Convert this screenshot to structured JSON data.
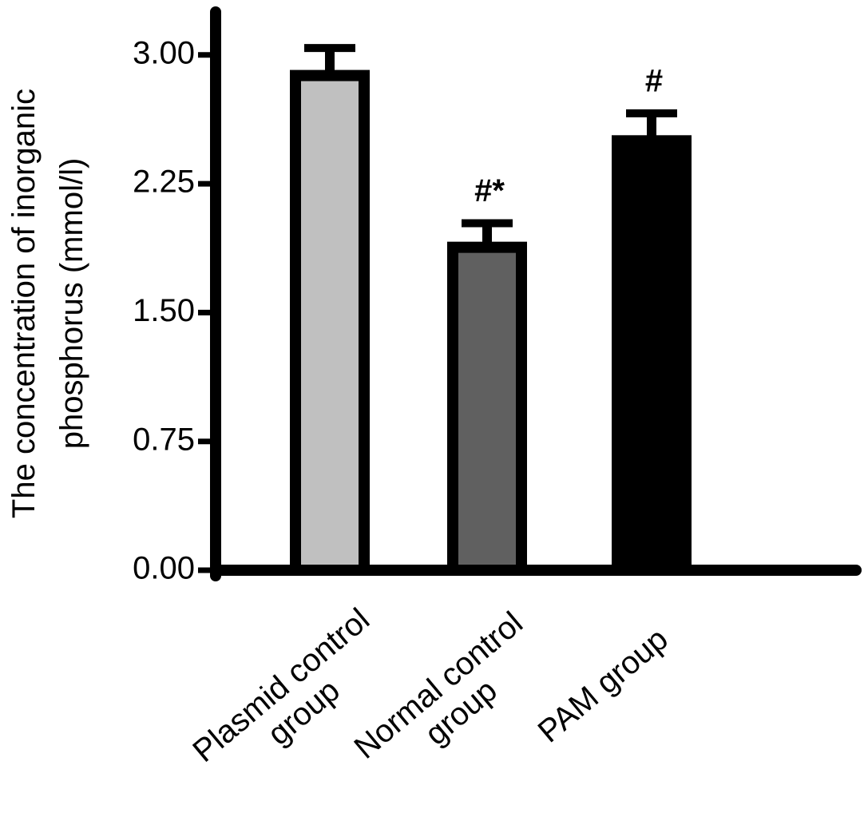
{
  "chart_data": {
    "type": "bar",
    "y_label": "The concentration of inorganic phosphorus (mmol/l)",
    "categories": [
      "Plasmid control group",
      "Normal control group",
      "PAM group"
    ],
    "values": [
      2.88,
      1.88,
      2.5
    ],
    "errors": [
      0.16,
      0.14,
      0.16
    ],
    "colors": [
      "#c0c0c0",
      "#606060",
      "#000000"
    ],
    "value_annotations": [
      null,
      "#*",
      "#"
    ],
    "ylim": [
      0,
      3.25
    ],
    "yticks": [
      {
        "value": 0,
        "label": "0.00"
      },
      {
        "value": 0.75,
        "label": "0.75"
      },
      {
        "value": 1.5,
        "label": "1.50"
      },
      {
        "value": 2.25,
        "label": "2.25"
      },
      {
        "value": 3,
        "label": "3.00"
      }
    ]
  }
}
